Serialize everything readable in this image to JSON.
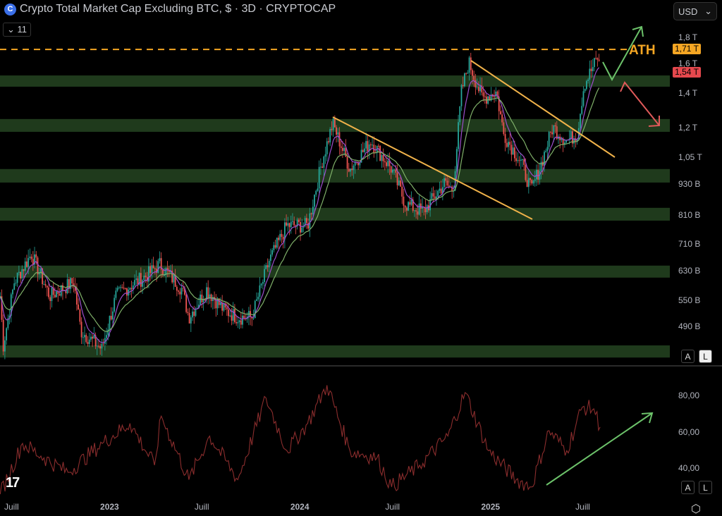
{
  "header": {
    "title": "Crypto Total Market Cap Excluding BTC, $ · 3D · CRYPTOCAP",
    "logo_letter": "C",
    "indicators_toggle": "11",
    "currency": "USD"
  },
  "annotation": {
    "ath_label": "ATH"
  },
  "colors": {
    "up": "#26a69a",
    "down": "#ef5350",
    "ma_fast": "#9c4dcc",
    "ma_slow": "#7fb069",
    "zone": "#1f3a1c",
    "ath_line": "#f5a623",
    "trendline": "#f0b24a",
    "rsi": "#8b2d2d",
    "arrow_up": "#6cc26a",
    "arrow_down": "#e05a5a"
  },
  "chart_data": [
    {
      "type": "candlestick",
      "title": "Crypto Total Market Cap Excluding BTC, $ · 3D · CRYPTOCAP",
      "interval": "3D",
      "yscale": "log",
      "ylim_billions": [
        420,
        1900
      ],
      "x_ticks": [
        "Juill",
        "2023",
        "Juill",
        "2024",
        "Juill",
        "2025",
        "Juill"
      ],
      "y_ticks": [
        {
          "v": 1800,
          "label": "1,8 T"
        },
        {
          "v": 1600,
          "label": "1,6 T"
        },
        {
          "v": 1400,
          "label": "1,4 T"
        },
        {
          "v": 1200,
          "label": "1,2 T"
        },
        {
          "v": 1050,
          "label": "1,05 T"
        },
        {
          "v": 930,
          "label": "930 B"
        },
        {
          "v": 810,
          "label": "810 B"
        },
        {
          "v": 710,
          "label": "710 B"
        },
        {
          "v": 630,
          "label": "630 B"
        },
        {
          "v": 550,
          "label": "550 B"
        },
        {
          "v": 490,
          "label": "490 B"
        }
      ],
      "price_tags": [
        {
          "v": 1710,
          "label": "1,71 T",
          "color": "#f5a623"
        },
        {
          "v": 1540,
          "label": "1,54 T",
          "color": "#e5484d"
        }
      ],
      "ath_level_billions": 1710,
      "support_zones_billions": [
        [
          1446,
          1521
        ],
        [
          1180,
          1250
        ],
        [
          939,
          998
        ],
        [
          791,
          838
        ],
        [
          612,
          646
        ],
        [
          427,
          451
        ]
      ],
      "close_billions": [
        [
          "2022-06-07",
          563
        ],
        [
          "2022-06-13",
          451
        ],
        [
          "2022-07-04",
          600
        ],
        [
          "2022-08-06",
          681
        ],
        [
          "2022-09-10",
          563
        ],
        [
          "2022-10-26",
          600
        ],
        [
          "2022-11-09",
          481
        ],
        [
          "2022-12-19",
          444
        ],
        [
          "2023-01-15",
          563
        ],
        [
          "2023-02-11",
          590
        ],
        [
          "2023-03-16",
          619
        ],
        [
          "2023-04-09",
          650
        ],
        [
          "2023-05-22",
          581
        ],
        [
          "2023-06-04",
          512
        ],
        [
          "2023-07-08",
          581
        ],
        [
          "2023-08-10",
          529
        ],
        [
          "2023-09-06",
          512
        ],
        [
          "2023-10-03",
          512
        ],
        [
          "2023-11-05",
          660
        ],
        [
          "2023-12-09",
          774
        ],
        [
          "2024-01-18",
          774
        ],
        [
          "2024-02-14",
          1029
        ],
        [
          "2024-03-06",
          1226
        ],
        [
          "2024-04-08",
          998
        ],
        [
          "2024-05-18",
          1133
        ],
        [
          "2024-06-27",
          998
        ],
        [
          "2024-07-24",
          851
        ],
        [
          "2024-08-27",
          824
        ],
        [
          "2024-10-06",
          936
        ],
        [
          "2024-10-23",
          907
        ],
        [
          "2024-11-08",
          1414
        ],
        [
          "2024-11-22",
          1616
        ],
        [
          "2024-12-18",
          1370
        ],
        [
          "2025-01-14",
          1414
        ],
        [
          "2025-01-28",
          1169
        ],
        [
          "2025-03-02",
          1029
        ],
        [
          "2025-03-22",
          907
        ],
        [
          "2025-04-11",
          1029
        ],
        [
          "2025-05-02",
          1206
        ],
        [
          "2025-05-29",
          1133
        ],
        [
          "2025-06-18",
          1169
        ],
        [
          "2025-07-01",
          1459
        ],
        [
          "2025-07-15",
          1555
        ],
        [
          "2025-07-28",
          1658
        ],
        [
          "2025-08-01",
          1540
        ]
      ]
    },
    {
      "type": "line",
      "y_ticks": [
        {
          "v": 80,
          "label": "80,00"
        },
        {
          "v": 60,
          "label": "60,00"
        },
        {
          "v": 40,
          "label": "40,00"
        }
      ],
      "ylim": [
        22,
        95
      ],
      "values": [
        [
          "2022-06-07",
          26
        ],
        [
          "2022-07-20",
          54
        ],
        [
          "2022-08-30",
          46
        ],
        [
          "2022-10-15",
          38
        ],
        [
          "2022-12-20",
          54
        ],
        [
          "2023-02-11",
          65
        ],
        [
          "2023-03-30",
          42
        ],
        [
          "2023-04-12",
          69
        ],
        [
          "2023-06-04",
          34
        ],
        [
          "2023-07-14",
          58
        ],
        [
          "2023-09-06",
          34
        ],
        [
          "2023-10-30",
          79
        ],
        [
          "2023-12-09",
          50
        ],
        [
          "2024-01-18",
          65
        ],
        [
          "2024-02-24",
          86
        ],
        [
          "2024-04-08",
          50
        ],
        [
          "2024-05-30",
          46
        ],
        [
          "2024-06-27",
          30
        ],
        [
          "2024-08-20",
          42
        ],
        [
          "2024-10-13",
          58
        ],
        [
          "2024-11-15",
          82
        ],
        [
          "2024-12-30",
          50
        ],
        [
          "2025-02-21",
          34
        ],
        [
          "2025-03-22",
          30
        ],
        [
          "2025-04-25",
          61
        ],
        [
          "2025-05-29",
          50
        ],
        [
          "2025-06-28",
          74
        ],
        [
          "2025-07-20",
          73
        ],
        [
          "2025-08-01",
          63
        ]
      ]
    }
  ],
  "panes": {
    "price_scale_auto": "A",
    "price_scale_log": "L",
    "rsi_scale_auto": "A",
    "rsi_scale_log": "L"
  },
  "footer": {
    "brand": "TV"
  }
}
